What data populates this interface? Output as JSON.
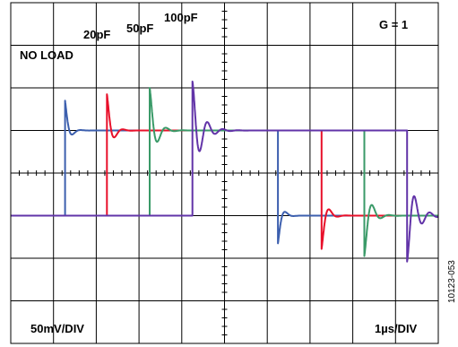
{
  "chart_data": {
    "type": "line",
    "title": "",
    "xlabel": "",
    "ylabel": "",
    "grid": true,
    "divisions": {
      "x": 10,
      "y": 8
    },
    "xlim": [
      0,
      10
    ],
    "ylim": [
      -4,
      4
    ],
    "annotations": {
      "gain": "G = 1",
      "vertical_scale": "50mV/DIV",
      "horizontal_scale": "1µs/DIV",
      "figure_id": "10123-053"
    },
    "series": [
      {
        "name": "NO LOAD",
        "color": "#3c5fae",
        "rise_div": 1.27,
        "fall_div": 6.25,
        "overshoot_div": 0.7,
        "undershoot_div": 0.65,
        "ringing_div": 0.4,
        "decay_div": 0.09
      },
      {
        "name": "20pF",
        "color": "#e8102a",
        "rise_div": 2.25,
        "fall_div": 7.27,
        "overshoot_div": 0.85,
        "undershoot_div": 0.78,
        "ringing_div": 0.4,
        "decay_div": 0.11
      },
      {
        "name": "50pF",
        "color": "#3a9a68",
        "rise_div": 3.25,
        "fall_div": 8.27,
        "overshoot_div": 1.0,
        "undershoot_div": 0.95,
        "ringing_div": 0.4,
        "decay_div": 0.14
      },
      {
        "name": "100pF",
        "color": "#6234a8",
        "rise_div": 4.25,
        "fall_div": 9.27,
        "overshoot_div": 1.15,
        "undershoot_div": 1.08,
        "ringing_div": 0.36,
        "decay_div": 0.2
      }
    ],
    "levels": {
      "low_div": -1,
      "high_div": 1
    }
  }
}
